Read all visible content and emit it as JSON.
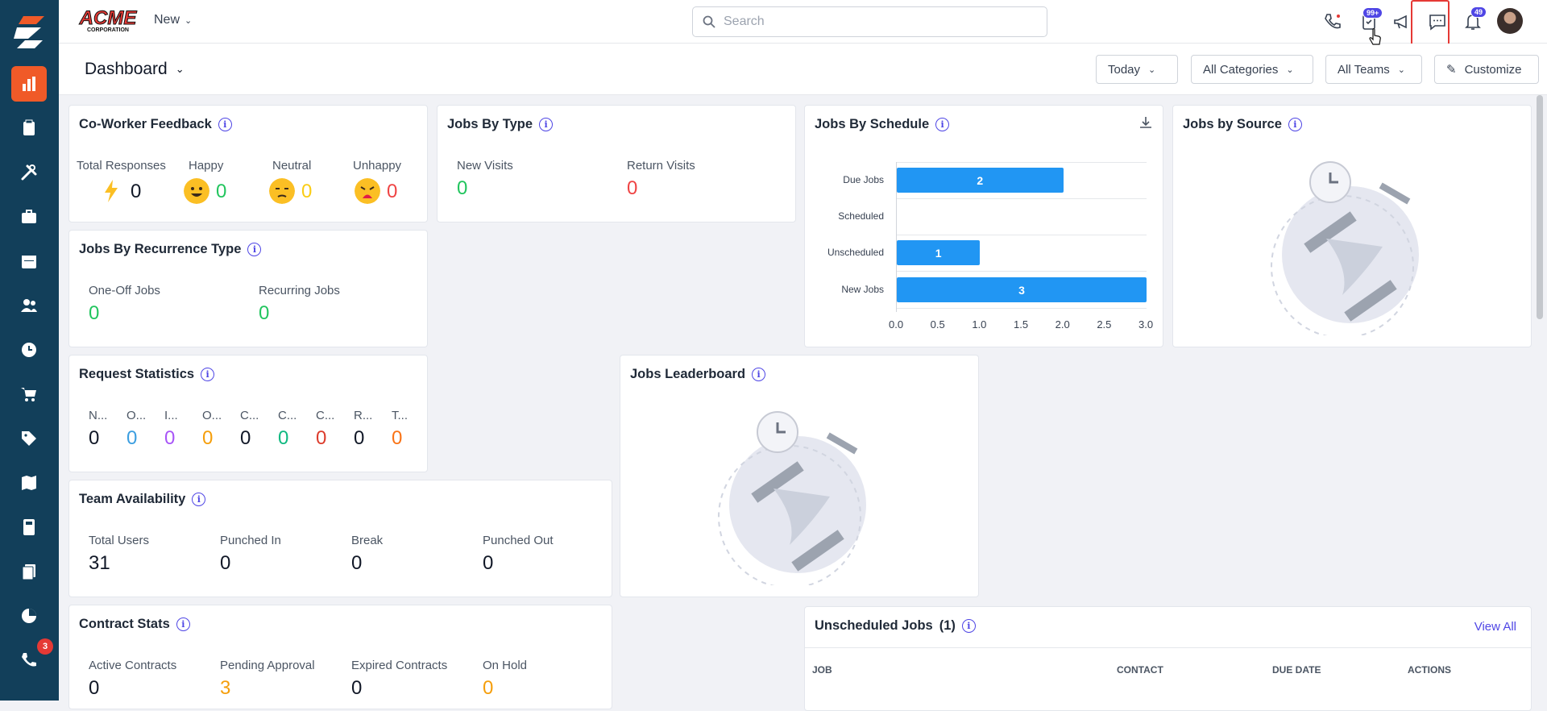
{
  "app": {
    "logo_text": "ACME",
    "logo_sub": "CORPORATION"
  },
  "sidebar": {
    "items": [
      "dashboard",
      "jobs",
      "tools",
      "briefcase",
      "calendar",
      "people",
      "clock",
      "cart",
      "tags",
      "map",
      "calculator",
      "documents",
      "reports",
      "calls"
    ],
    "calls_badge": "3"
  },
  "topbar": {
    "new_label": "New",
    "search_placeholder": "Search",
    "tasks_badge": "99+",
    "notifications_badge": "49"
  },
  "header": {
    "title": "Dashboard",
    "filters": {
      "date": "Today",
      "categories": "All Categories",
      "teams": "All Teams"
    },
    "customize_label": "Customize"
  },
  "coworker": {
    "title": "Co-Worker Feedback",
    "labels": [
      "Total Responses",
      "Happy",
      "Neutral",
      "Unhappy"
    ],
    "values": [
      "0",
      "0",
      "0",
      "0"
    ]
  },
  "jobs_by_type": {
    "title": "Jobs By Type",
    "labels": [
      "New Visits",
      "Return Visits"
    ],
    "values": [
      "0",
      "0"
    ]
  },
  "jobs_by_schedule": {
    "title": "Jobs By Schedule"
  },
  "jobs_by_source": {
    "title": "Jobs by Source"
  },
  "recurrence": {
    "title": "Jobs By Recurrence Type",
    "labels": [
      "One-Off Jobs",
      "Recurring Jobs"
    ],
    "values": [
      "0",
      "0"
    ]
  },
  "request_stats": {
    "title": "Request Statistics",
    "labels": [
      "N...",
      "O...",
      "I...",
      "O...",
      "C...",
      "C...",
      "C...",
      "R...",
      "T..."
    ],
    "values": [
      "0",
      "0",
      "0",
      "0",
      "0",
      "0",
      "0",
      "0",
      "0"
    ]
  },
  "leaderboard": {
    "title": "Jobs Leaderboard"
  },
  "team_availability": {
    "title": "Team Availability",
    "labels": [
      "Total Users",
      "Punched In",
      "Break",
      "Punched Out"
    ],
    "values": [
      "31",
      "0",
      "0",
      "0"
    ]
  },
  "contract_stats": {
    "title": "Contract Stats",
    "labels": [
      "Active Contracts",
      "Pending Approval",
      "Expired Contracts",
      "On Hold"
    ],
    "values": [
      "0",
      "3",
      "0",
      "0"
    ]
  },
  "unscheduled": {
    "title": "Unscheduled Jobs",
    "count": "(1)",
    "view_all": "View All",
    "columns": [
      "JOB",
      "CONTACT",
      "DUE DATE",
      "ACTIONS"
    ]
  },
  "chart_data": {
    "type": "bar",
    "orientation": "horizontal",
    "categories": [
      "Due Jobs",
      "Scheduled",
      "Unscheduled",
      "New Jobs"
    ],
    "values": [
      2,
      0,
      1,
      3
    ],
    "xlim": [
      0,
      3.0
    ],
    "xticks": [
      "0.0",
      "0.5",
      "1.0",
      "1.5",
      "2.0",
      "2.5",
      "3.0"
    ],
    "bar_color": "#2196f3",
    "grid": true
  }
}
